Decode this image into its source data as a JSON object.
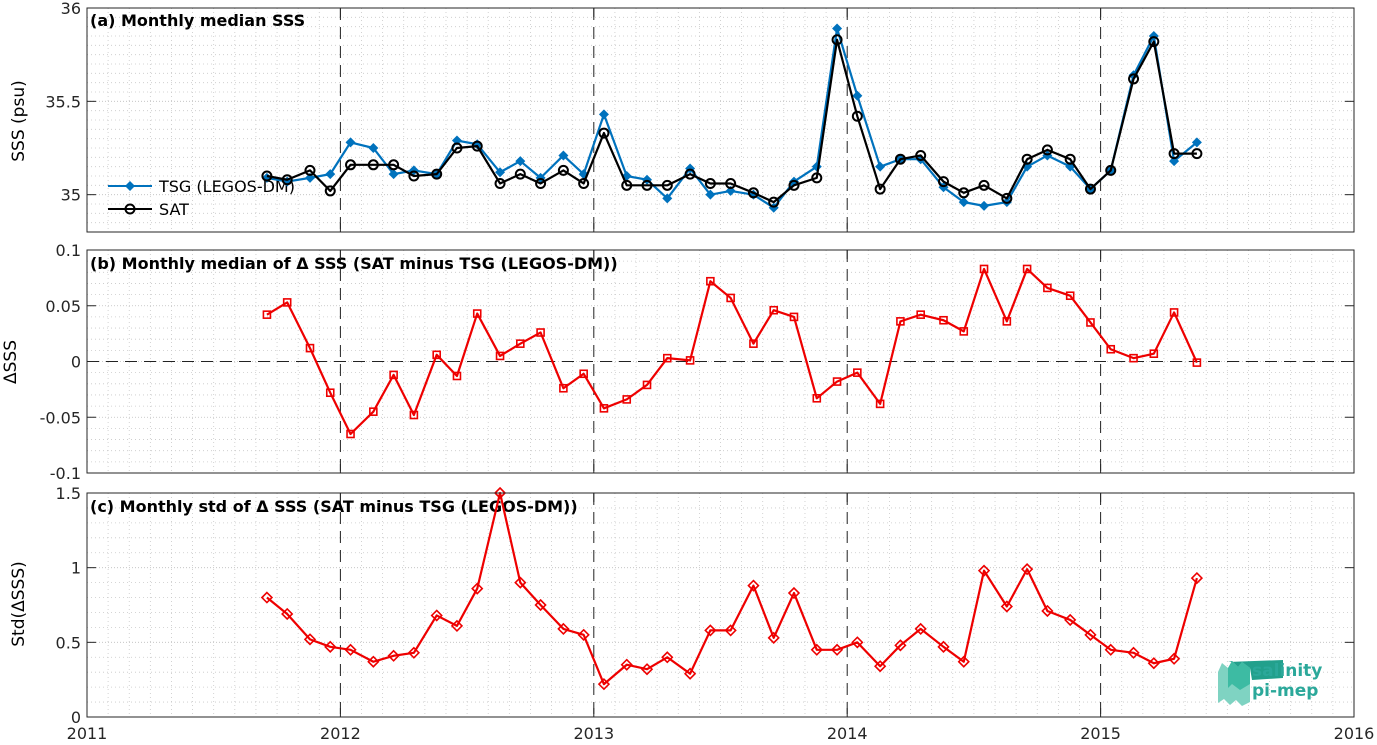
{
  "colors": {
    "tsg": "#0072BD",
    "sat": "#000000",
    "delta": "#EE0000",
    "logo": "#2BA89A"
  },
  "logo": {
    "line1": "salinity",
    "line2": "pi-mep"
  },
  "chart_data": [
    {
      "id": "a",
      "type": "line",
      "title": "(a) Monthly median SSS",
      "ylabel": "SSS (psu)",
      "xlabel": "",
      "xlim": [
        2011,
        2016
      ],
      "ylim": [
        34.8,
        36
      ],
      "xticks": [
        "2011",
        "2012",
        "2013",
        "2014",
        "2015",
        "2016"
      ],
      "yticks": [
        "35",
        "35.5",
        "36"
      ],
      "grid": true,
      "legend_position": "bottom-left",
      "x": [
        2011.71,
        2011.79,
        2011.88,
        2011.96,
        2012.04,
        2012.13,
        2012.21,
        2012.29,
        2012.38,
        2012.46,
        2012.54,
        2012.63,
        2012.71,
        2012.79,
        2012.88,
        2012.96,
        2013.04,
        2013.13,
        2013.21,
        2013.29,
        2013.38,
        2013.46,
        2013.54,
        2013.63,
        2013.71,
        2013.79,
        2013.88,
        2013.96,
        2014.04,
        2014.13,
        2014.21,
        2014.29,
        2014.38,
        2014.46,
        2014.54,
        2014.63,
        2014.71,
        2014.79,
        2014.88,
        2014.96,
        2015.04,
        2015.13,
        2015.21,
        2015.29,
        2015.38
      ],
      "series": [
        {
          "name": "TSG (LEGOS-DM)",
          "marker": "diamond-filled",
          "values": [
            35.09,
            35.07,
            35.09,
            35.11,
            35.28,
            35.25,
            35.11,
            35.13,
            35.11,
            35.29,
            35.27,
            35.12,
            35.18,
            35.09,
            35.21,
            35.11,
            35.43,
            35.1,
            35.08,
            34.98,
            35.14,
            35.0,
            35.02,
            35.0,
            34.93,
            35.07,
            35.15,
            35.89,
            35.53,
            35.15,
            35.19,
            35.19,
            35.04,
            34.96,
            34.94,
            34.96,
            35.15,
            35.21,
            35.15,
            35.03,
            35.13,
            35.64,
            35.85,
            35.18,
            35.28
          ]
        },
        {
          "name": "SAT",
          "marker": "circle",
          "values": [
            35.1,
            35.08,
            35.13,
            35.02,
            35.16,
            35.16,
            35.16,
            35.1,
            35.11,
            35.25,
            35.26,
            35.06,
            35.11,
            35.06,
            35.13,
            35.06,
            35.33,
            35.05,
            35.05,
            35.05,
            35.11,
            35.06,
            35.06,
            35.01,
            34.96,
            35.05,
            35.09,
            35.83,
            35.42,
            35.03,
            35.19,
            35.21,
            35.07,
            35.01,
            35.05,
            34.98,
            35.19,
            35.24,
            35.19,
            35.03,
            35.13,
            35.62,
            35.82,
            35.22,
            35.22
          ]
        }
      ]
    },
    {
      "id": "b",
      "type": "line",
      "title": "(b) Monthly median of Δ SSS (SAT minus TSG (LEGOS-DM))",
      "ylabel": "ΔSSS",
      "xlabel": "",
      "xlim": [
        2011,
        2016
      ],
      "ylim": [
        -0.1,
        0.1
      ],
      "xticks": [
        "2011",
        "2012",
        "2013",
        "2014",
        "2015",
        "2016"
      ],
      "yticks": [
        "-0.1",
        "-0.05",
        "0",
        "0.05",
        "0.1"
      ],
      "grid": true,
      "zero_line": true,
      "x": [
        2011.71,
        2011.79,
        2011.88,
        2011.96,
        2012.04,
        2012.13,
        2012.21,
        2012.29,
        2012.38,
        2012.46,
        2012.54,
        2012.63,
        2012.71,
        2012.79,
        2012.88,
        2012.96,
        2013.04,
        2013.13,
        2013.21,
        2013.29,
        2013.38,
        2013.46,
        2013.54,
        2013.63,
        2013.71,
        2013.79,
        2013.88,
        2013.96,
        2014.04,
        2014.13,
        2014.21,
        2014.29,
        2014.38,
        2014.46,
        2014.54,
        2014.63,
        2014.71,
        2014.79,
        2014.88,
        2014.96,
        2015.04,
        2015.13,
        2015.21,
        2015.29,
        2015.38
      ],
      "series": [
        {
          "name": "",
          "marker": "square",
          "values": [
            0.042,
            0.053,
            0.012,
            -0.028,
            -0.065,
            -0.045,
            -0.012,
            -0.048,
            0.006,
            -0.013,
            0.043,
            0.005,
            0.016,
            0.026,
            -0.024,
            -0.011,
            -0.042,
            -0.034,
            -0.021,
            0.003,
            0.001,
            0.072,
            0.057,
            0.016,
            0.046,
            0.04,
            -0.033,
            -0.018,
            -0.01,
            -0.038,
            0.036,
            0.042,
            0.037,
            0.027,
            0.083,
            0.036,
            0.083,
            0.066,
            0.059,
            0.035,
            0.011,
            0.003,
            0.007,
            0.044,
            -0.001
          ]
        }
      ]
    },
    {
      "id": "c",
      "type": "line",
      "title": "(c) Monthly std of Δ SSS (SAT minus TSG (LEGOS-DM))",
      "ylabel": "Std(ΔSSS)",
      "xlabel": "",
      "xlim": [
        2011,
        2016
      ],
      "ylim": [
        0,
        1.5
      ],
      "xticks": [
        "2011",
        "2012",
        "2013",
        "2014",
        "2015",
        "2016"
      ],
      "yticks": [
        "0",
        "0.5",
        "1",
        "1.5"
      ],
      "grid": true,
      "x": [
        2011.71,
        2011.79,
        2011.88,
        2011.96,
        2012.04,
        2012.13,
        2012.21,
        2012.29,
        2012.38,
        2012.46,
        2012.54,
        2012.63,
        2012.71,
        2012.79,
        2012.88,
        2012.96,
        2013.04,
        2013.13,
        2013.21,
        2013.29,
        2013.38,
        2013.46,
        2013.54,
        2013.63,
        2013.71,
        2013.79,
        2013.88,
        2013.96,
        2014.04,
        2014.13,
        2014.21,
        2014.29,
        2014.38,
        2014.46,
        2014.54,
        2014.63,
        2014.71,
        2014.79,
        2014.88,
        2014.96,
        2015.04,
        2015.13,
        2015.21,
        2015.29,
        2015.38
      ],
      "series": [
        {
          "name": "",
          "marker": "diamond",
          "values": [
            0.8,
            0.69,
            0.52,
            0.47,
            0.45,
            0.37,
            0.41,
            0.43,
            0.68,
            0.61,
            0.86,
            1.5,
            0.9,
            0.75,
            0.59,
            0.55,
            0.22,
            0.35,
            0.32,
            0.4,
            0.29,
            0.58,
            0.58,
            0.88,
            0.53,
            0.83,
            0.45,
            0.45,
            0.5,
            0.34,
            0.48,
            0.59,
            0.47,
            0.37,
            0.98,
            0.74,
            0.99,
            0.71,
            0.65,
            0.55,
            0.45,
            0.43,
            0.36,
            0.39,
            0.93
          ]
        }
      ]
    }
  ]
}
